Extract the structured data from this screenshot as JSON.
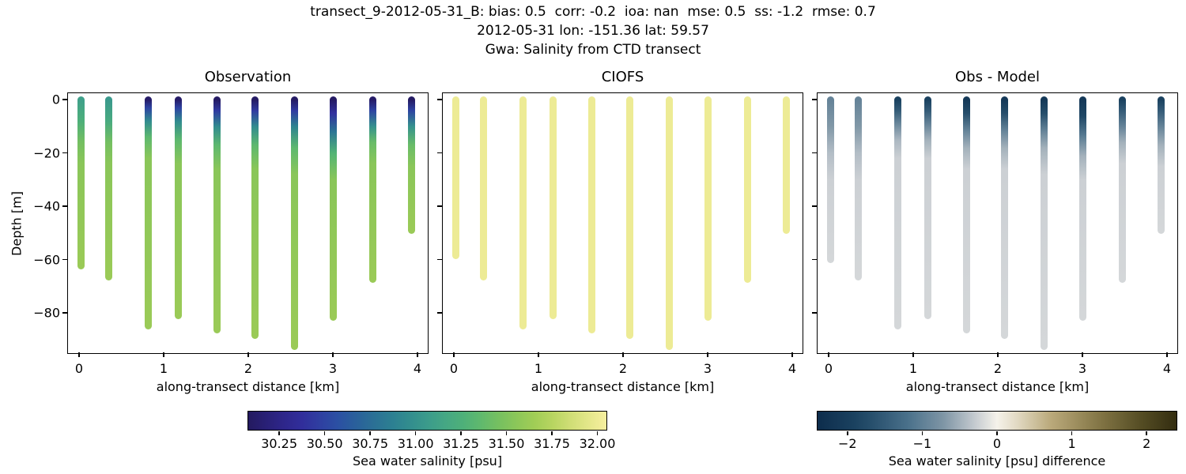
{
  "chart_data": {
    "type": "scatter",
    "title_lines": [
      "transect_9-2012-05-31_B: bias: 0.5  corr: -0.2  ioa: nan  mse: 0.5  ss: -1.2  rmse: 0.7",
      "2012-05-31 lon: -151.36 lat: 59.57",
      "Gwa: Salinity from CTD transect"
    ],
    "panels": [
      {
        "title": "Observation",
        "data_key": "obs"
      },
      {
        "title": "CIOFS",
        "data_key": "model"
      },
      {
        "title": "Obs - Model",
        "data_key": "diff"
      }
    ],
    "xlabel": "along-transect distance [km]",
    "ylabel": "Depth [m]",
    "xlim": [
      -0.131,
      4.14
    ],
    "ylim_top": 2.4,
    "ylim_bottom": -95.7,
    "xticks": [
      0,
      1,
      2,
      3,
      4
    ],
    "yticks": [
      0,
      -20,
      -40,
      -60,
      -80
    ],
    "grid": false,
    "colormaps": {
      "haline": {
        "vmin": 30.08,
        "vmax": 32.05,
        "stops": [
          [
            0.0,
            "#241a5f"
          ],
          [
            0.08,
            "#2c2384"
          ],
          [
            0.16,
            "#32309e"
          ],
          [
            0.24,
            "#2b4da4"
          ],
          [
            0.33,
            "#2a6a97"
          ],
          [
            0.42,
            "#2d8590"
          ],
          [
            0.52,
            "#3fa18a"
          ],
          [
            0.62,
            "#52b475"
          ],
          [
            0.72,
            "#7fc35b"
          ],
          [
            0.82,
            "#aacf55"
          ],
          [
            0.92,
            "#d9e27e"
          ],
          [
            1.0,
            "#f7ef9f"
          ]
        ]
      },
      "diff": {
        "vmin": -2.4,
        "vmax": 2.4,
        "stops": [
          [
            0.0,
            "#0d2d4c"
          ],
          [
            0.12,
            "#1d4563"
          ],
          [
            0.25,
            "#49708a"
          ],
          [
            0.35,
            "#7e95a5"
          ],
          [
            0.44,
            "#c6cbd1"
          ],
          [
            0.5,
            "#f5f2ea"
          ],
          [
            0.56,
            "#e0d8c0"
          ],
          [
            0.65,
            "#baa97b"
          ],
          [
            0.78,
            "#857747"
          ],
          [
            0.9,
            "#554d24"
          ],
          [
            1.0,
            "#332d10"
          ]
        ]
      }
    },
    "colorbars": [
      {
        "label": "Sea water salinity [psu]",
        "colormap": "haline",
        "tick_values": [
          30.25,
          30.5,
          30.75,
          31.0,
          31.25,
          31.5,
          31.75,
          32.0
        ],
        "tick_labels": [
          "30.25",
          "30.50",
          "30.75",
          "31.00",
          "31.25",
          "31.50",
          "31.75",
          "32.00"
        ]
      },
      {
        "label": "Sea water salinity [psu] difference",
        "colormap": "diff",
        "tick_values": [
          -2,
          -1,
          0,
          1,
          2
        ],
        "tick_labels": [
          "−2",
          "−1",
          "0",
          "1",
          "2"
        ]
      }
    ],
    "model_salinity_psu": 32.0,
    "profiles": [
      {
        "x_km": 0.02,
        "model_bottom_m": -58.5,
        "obs_points": [
          [
            0,
            31.1
          ],
          [
            -8,
            31.25
          ],
          [
            -16,
            31.45
          ],
          [
            -24,
            31.55
          ],
          [
            -62.5,
            31.62
          ]
        ],
        "diff_points": [
          [
            0,
            -0.95
          ],
          [
            -10,
            -0.7
          ],
          [
            -20,
            -0.4
          ],
          [
            -30,
            -0.25
          ],
          [
            -60,
            -0.2
          ]
        ]
      },
      {
        "x_km": 0.35,
        "model_bottom_m": -66.5,
        "obs_points": [
          [
            0,
            31.05
          ],
          [
            -8,
            31.2
          ],
          [
            -16,
            31.45
          ],
          [
            -24,
            31.55
          ],
          [
            -66.5,
            31.62
          ]
        ],
        "diff_points": [
          [
            0,
            -0.95
          ],
          [
            -10,
            -0.7
          ],
          [
            -20,
            -0.4
          ],
          [
            -30,
            -0.25
          ],
          [
            -66.5,
            -0.2
          ]
        ]
      },
      {
        "x_km": 0.82,
        "model_bottom_m": -85,
        "obs_points": [
          [
            0,
            30.12
          ],
          [
            -3,
            30.5
          ],
          [
            -8,
            30.95
          ],
          [
            -14,
            31.35
          ],
          [
            -22,
            31.55
          ],
          [
            -85,
            31.62
          ]
        ],
        "diff_points": [
          [
            0,
            -1.9
          ],
          [
            -4,
            -1.5
          ],
          [
            -9,
            -0.9
          ],
          [
            -15,
            -0.45
          ],
          [
            -22,
            -0.25
          ],
          [
            -85,
            -0.2
          ]
        ]
      },
      {
        "x_km": 1.17,
        "model_bottom_m": -81,
        "obs_points": [
          [
            0,
            30.12
          ],
          [
            -3,
            30.5
          ],
          [
            -8,
            30.95
          ],
          [
            -15,
            31.35
          ],
          [
            -24,
            31.55
          ],
          [
            -81,
            31.62
          ]
        ],
        "diff_points": [
          [
            0,
            -1.9
          ],
          [
            -4,
            -1.5
          ],
          [
            -9,
            -0.95
          ],
          [
            -15,
            -0.5
          ],
          [
            -22,
            -0.25
          ],
          [
            -81,
            -0.2
          ]
        ]
      },
      {
        "x_km": 1.63,
        "model_bottom_m": -86.5,
        "obs_points": [
          [
            0,
            30.1
          ],
          [
            -4,
            30.45
          ],
          [
            -10,
            30.95
          ],
          [
            -17,
            31.35
          ],
          [
            -26,
            31.55
          ],
          [
            -86.5,
            31.62
          ]
        ],
        "diff_points": [
          [
            0,
            -2.1
          ],
          [
            -5,
            -1.7
          ],
          [
            -11,
            -1.0
          ],
          [
            -18,
            -0.5
          ],
          [
            -26,
            -0.25
          ],
          [
            -86.5,
            -0.2
          ]
        ]
      },
      {
        "x_km": 2.08,
        "model_bottom_m": -88.5,
        "obs_points": [
          [
            0,
            30.1
          ],
          [
            -4,
            30.45
          ],
          [
            -10,
            30.95
          ],
          [
            -17,
            31.35
          ],
          [
            -26,
            31.55
          ],
          [
            -88.5,
            31.62
          ]
        ],
        "diff_points": [
          [
            0,
            -2.1
          ],
          [
            -5,
            -1.7
          ],
          [
            -11,
            -1.0
          ],
          [
            -18,
            -0.5
          ],
          [
            -26,
            -0.25
          ],
          [
            -88.5,
            -0.2
          ]
        ]
      },
      {
        "x_km": 2.55,
        "model_bottom_m": -92.5,
        "obs_points": [
          [
            0,
            30.1
          ],
          [
            -4,
            30.45
          ],
          [
            -10,
            30.9
          ],
          [
            -18,
            31.35
          ],
          [
            -28,
            31.55
          ],
          [
            -92.5,
            31.62
          ]
        ],
        "diff_points": [
          [
            0,
            -2.1
          ],
          [
            -5,
            -1.7
          ],
          [
            -11,
            -1.0
          ],
          [
            -18,
            -0.5
          ],
          [
            -28,
            -0.25
          ],
          [
            -92.5,
            -0.2
          ]
        ]
      },
      {
        "x_km": 3.0,
        "model_bottom_m": -81.5,
        "obs_points": [
          [
            0,
            30.1
          ],
          [
            -5,
            30.4
          ],
          [
            -12,
            30.8
          ],
          [
            -20,
            31.3
          ],
          [
            -30,
            31.55
          ],
          [
            -81.5,
            31.62
          ]
        ],
        "diff_points": [
          [
            0,
            -2.1
          ],
          [
            -6,
            -1.8
          ],
          [
            -13,
            -1.1
          ],
          [
            -21,
            -0.5
          ],
          [
            -30,
            -0.25
          ],
          [
            -81.5,
            -0.2
          ]
        ]
      },
      {
        "x_km": 3.47,
        "model_bottom_m": -67.5,
        "obs_points": [
          [
            0,
            30.12
          ],
          [
            -4,
            30.5
          ],
          [
            -10,
            31.0
          ],
          [
            -16,
            31.4
          ],
          [
            -24,
            31.55
          ],
          [
            -67.5,
            31.62
          ]
        ],
        "diff_points": [
          [
            0,
            -1.9
          ],
          [
            -4,
            -1.5
          ],
          [
            -10,
            -0.95
          ],
          [
            -16,
            -0.5
          ],
          [
            -24,
            -0.25
          ],
          [
            -67.5,
            -0.2
          ]
        ]
      },
      {
        "x_km": 3.93,
        "model_bottom_m": -49,
        "obs_points": [
          [
            0,
            30.1
          ],
          [
            -4,
            30.5
          ],
          [
            -10,
            31.0
          ],
          [
            -17,
            31.4
          ],
          [
            -25,
            31.55
          ],
          [
            -49,
            31.62
          ]
        ],
        "diff_points": [
          [
            0,
            -1.9
          ],
          [
            -4,
            -1.5
          ],
          [
            -10,
            -0.95
          ],
          [
            -17,
            -0.5
          ],
          [
            -25,
            -0.25
          ],
          [
            -49,
            -0.2
          ]
        ]
      }
    ]
  }
}
